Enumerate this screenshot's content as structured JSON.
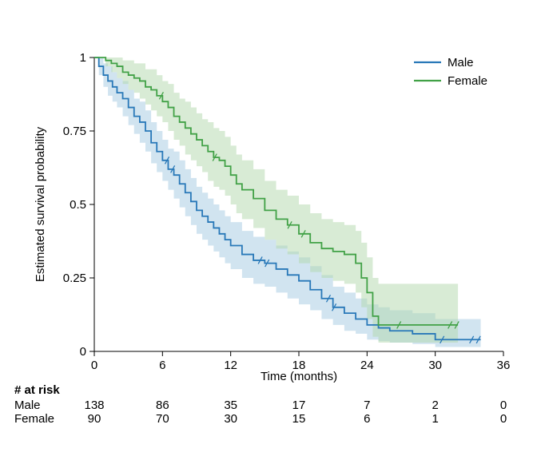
{
  "chart_data": {
    "type": "line",
    "subtype": "kaplan-meier-survival",
    "title": "",
    "xlabel": "Time (months)",
    "ylabel": "Estimated survival probability",
    "xlim": [
      0,
      36
    ],
    "ylim": [
      0,
      1
    ],
    "xticks": [
      0,
      6,
      12,
      18,
      24,
      30,
      36
    ],
    "yticks": [
      0,
      0.25,
      0.5,
      0.75,
      1
    ],
    "ytick_labels": [
      "0",
      "0.25",
      "0.5",
      "0.75",
      "1"
    ],
    "legend_position": "top-right",
    "grid": false,
    "series": [
      {
        "name": "Male",
        "color": "#2878b8",
        "band_color": "#a3c9e1",
        "band_opacity": 0.5,
        "steps": [
          [
            0,
            1,
            1,
            1
          ],
          [
            0.4,
            0.97,
            0.94,
            1
          ],
          [
            0.8,
            0.94,
            0.9,
            0.98
          ],
          [
            1.2,
            0.92,
            0.87,
            0.97
          ],
          [
            1.6,
            0.9,
            0.85,
            0.95
          ],
          [
            2,
            0.88,
            0.83,
            0.93
          ],
          [
            2.5,
            0.86,
            0.8,
            0.92
          ],
          [
            3,
            0.83,
            0.77,
            0.89
          ],
          [
            3.5,
            0.8,
            0.74,
            0.86
          ],
          [
            4,
            0.78,
            0.71,
            0.85
          ],
          [
            4.5,
            0.75,
            0.68,
            0.82
          ],
          [
            5,
            0.71,
            0.64,
            0.78
          ],
          [
            5.5,
            0.68,
            0.61,
            0.75
          ],
          [
            6,
            0.65,
            0.58,
            0.72
          ],
          [
            6.5,
            0.62,
            0.55,
            0.69
          ],
          [
            7,
            0.6,
            0.52,
            0.68
          ],
          [
            7.5,
            0.57,
            0.49,
            0.65
          ],
          [
            8,
            0.54,
            0.46,
            0.62
          ],
          [
            8.5,
            0.51,
            0.43,
            0.59
          ],
          [
            9,
            0.48,
            0.4,
            0.56
          ],
          [
            9.5,
            0.46,
            0.38,
            0.54
          ],
          [
            10,
            0.44,
            0.36,
            0.52
          ],
          [
            10.5,
            0.42,
            0.34,
            0.5
          ],
          [
            11,
            0.4,
            0.32,
            0.48
          ],
          [
            11.5,
            0.38,
            0.3,
            0.46
          ],
          [
            12,
            0.36,
            0.28,
            0.44
          ],
          [
            13,
            0.33,
            0.25,
            0.41
          ],
          [
            14,
            0.31,
            0.23,
            0.39
          ],
          [
            15,
            0.3,
            0.22,
            0.38
          ],
          [
            16,
            0.28,
            0.2,
            0.36
          ],
          [
            17,
            0.26,
            0.18,
            0.34
          ],
          [
            18,
            0.24,
            0.16,
            0.32
          ],
          [
            19,
            0.21,
            0.14,
            0.29
          ],
          [
            20,
            0.18,
            0.11,
            0.26
          ],
          [
            21,
            0.15,
            0.09,
            0.22
          ],
          [
            22,
            0.13,
            0.07,
            0.2
          ],
          [
            23,
            0.11,
            0.06,
            0.18
          ],
          [
            24,
            0.09,
            0.04,
            0.16
          ],
          [
            25,
            0.08,
            0.035,
            0.15
          ],
          [
            26,
            0.07,
            0.03,
            0.14
          ],
          [
            28,
            0.06,
            0.025,
            0.13
          ],
          [
            30,
            0.04,
            0.015,
            0.11
          ],
          [
            34,
            0.04,
            0.015,
            0.11
          ]
        ],
        "censor_times": [
          6.4,
          6.9,
          14.6,
          15.2,
          20.6,
          21.1,
          30.6,
          33.2,
          33.8
        ]
      },
      {
        "name": "Female",
        "color": "#41a146",
        "band_color": "#b2d8ac",
        "band_opacity": 0.5,
        "steps": [
          [
            0,
            1,
            1,
            1
          ],
          [
            1,
            0.99,
            0.97,
            1
          ],
          [
            1.5,
            0.98,
            0.95,
            1
          ],
          [
            2,
            0.97,
            0.93,
            1
          ],
          [
            2.5,
            0.95,
            0.91,
            0.99
          ],
          [
            3,
            0.94,
            0.89,
            0.99
          ],
          [
            3.5,
            0.93,
            0.88,
            0.98
          ],
          [
            4,
            0.92,
            0.86,
            0.98
          ],
          [
            4.5,
            0.9,
            0.84,
            0.96
          ],
          [
            5,
            0.89,
            0.82,
            0.96
          ],
          [
            5.5,
            0.87,
            0.8,
            0.94
          ],
          [
            6,
            0.85,
            0.78,
            0.92
          ],
          [
            6.5,
            0.83,
            0.75,
            0.91
          ],
          [
            7,
            0.8,
            0.72,
            0.88
          ],
          [
            7.5,
            0.78,
            0.7,
            0.86
          ],
          [
            8,
            0.76,
            0.67,
            0.85
          ],
          [
            8.5,
            0.74,
            0.65,
            0.83
          ],
          [
            9,
            0.72,
            0.63,
            0.81
          ],
          [
            9.5,
            0.7,
            0.61,
            0.79
          ],
          [
            10,
            0.68,
            0.58,
            0.78
          ],
          [
            10.5,
            0.66,
            0.56,
            0.76
          ],
          [
            11,
            0.65,
            0.55,
            0.75
          ],
          [
            11.5,
            0.63,
            0.53,
            0.73
          ],
          [
            12,
            0.6,
            0.5,
            0.7
          ],
          [
            12.5,
            0.57,
            0.47,
            0.67
          ],
          [
            13,
            0.55,
            0.45,
            0.65
          ],
          [
            14,
            0.52,
            0.42,
            0.62
          ],
          [
            15,
            0.48,
            0.38,
            0.58
          ],
          [
            16,
            0.45,
            0.35,
            0.55
          ],
          [
            17,
            0.43,
            0.33,
            0.53
          ],
          [
            18,
            0.4,
            0.3,
            0.5
          ],
          [
            19,
            0.37,
            0.27,
            0.47
          ],
          [
            20,
            0.35,
            0.25,
            0.45
          ],
          [
            21,
            0.34,
            0.24,
            0.44
          ],
          [
            22,
            0.33,
            0.23,
            0.43
          ],
          [
            23,
            0.3,
            0.2,
            0.41
          ],
          [
            23.5,
            0.25,
            0.15,
            0.37
          ],
          [
            24,
            0.2,
            0.11,
            0.32
          ],
          [
            24.5,
            0.12,
            0.05,
            0.25
          ],
          [
            25,
            0.09,
            0.03,
            0.23
          ],
          [
            32,
            0.09,
            0.03,
            0.23
          ]
        ],
        "censor_times": [
          5.9,
          10.6,
          17.2,
          18.4,
          26.8,
          31.3,
          31.9
        ]
      }
    ],
    "risk_table": {
      "title": "# at risk",
      "times": [
        0,
        6,
        12,
        18,
        24,
        30,
        36
      ],
      "rows": [
        {
          "name": "Male",
          "counts": [
            138,
            86,
            35,
            17,
            7,
            2,
            0
          ]
        },
        {
          "name": "Female",
          "counts": [
            90,
            70,
            30,
            15,
            6,
            1,
            0
          ]
        }
      ]
    }
  }
}
